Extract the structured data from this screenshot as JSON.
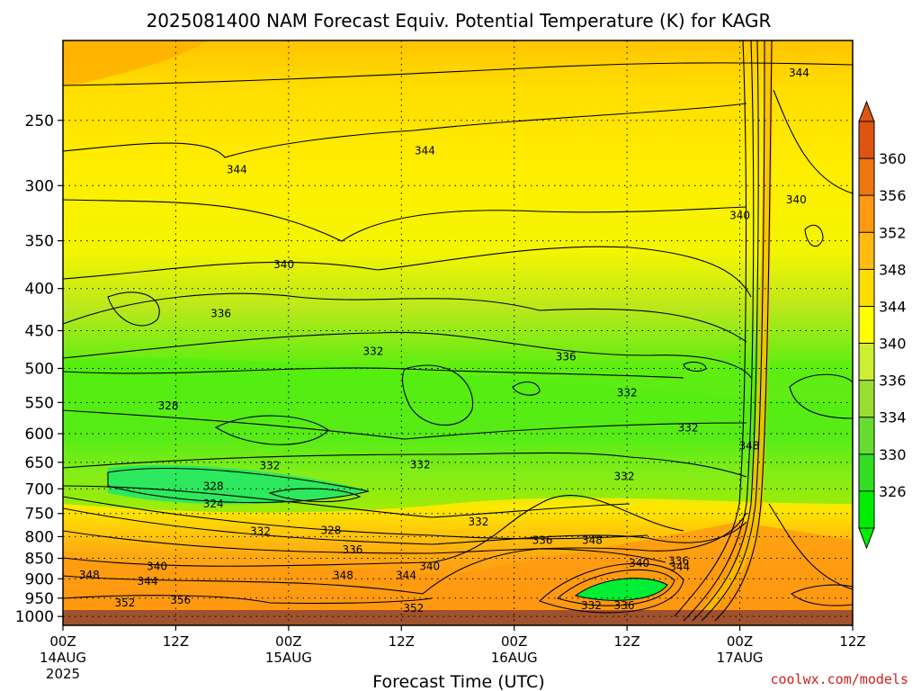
{
  "chart_data": {
    "type": "heatmap",
    "title": "2025081400 NAM Forecast Equiv. Potential Temperature (K) for KAGR",
    "xlabel": "Forecast Time (UTC)",
    "ylabel": "",
    "x_ticks": [
      {
        "label": "00Z",
        "sub": "14AUG",
        "sub2": "2025",
        "hour": 0
      },
      {
        "label": "12Z",
        "sub": "",
        "sub2": "",
        "hour": 12
      },
      {
        "label": "00Z",
        "sub": "15AUG",
        "sub2": "",
        "hour": 24
      },
      {
        "label": "12Z",
        "sub": "",
        "sub2": "",
        "hour": 36
      },
      {
        "label": "00Z",
        "sub": "16AUG",
        "sub2": "",
        "hour": 48
      },
      {
        "label": "12Z",
        "sub": "",
        "sub2": "",
        "hour": 60
      },
      {
        "label": "00Z",
        "sub": "17AUG",
        "sub2": "",
        "hour": 72
      },
      {
        "label": "12Z",
        "sub": "",
        "sub2": "",
        "hour": 84
      }
    ],
    "y_ticks": [
      "250",
      "300",
      "350",
      "400",
      "450",
      "500",
      "550",
      "600",
      "650",
      "700",
      "750",
      "800",
      "850",
      "900",
      "950",
      "1000"
    ],
    "y_scale": "log",
    "xlim": [
      0,
      84
    ],
    "ylim": [
      1025,
      200
    ],
    "grid": true,
    "colorbar": {
      "levels": [
        "326",
        "330",
        "334",
        "336",
        "340",
        "344",
        "348",
        "352",
        "356",
        "360"
      ],
      "colors": [
        "#00ee00",
        "#33dd22",
        "#66dd33",
        "#99dd33",
        "#ccee33",
        "#ffff00",
        "#ffdd00",
        "#ffbb11",
        "#ff9911",
        "#ee7711",
        "#dd5511"
      ]
    },
    "contour_labels": [
      {
        "text": "344",
        "hour": 78.3,
        "p": 219
      },
      {
        "text": "344",
        "hour": 38.5,
        "p": 272
      },
      {
        "text": "344",
        "hour": 18.5,
        "p": 287
      },
      {
        "text": "340",
        "hour": 78.0,
        "p": 312
      },
      {
        "text": "340",
        "hour": 72.0,
        "p": 326
      },
      {
        "text": "340",
        "hour": 23.5,
        "p": 374
      },
      {
        "text": "336",
        "hour": 16.8,
        "p": 429
      },
      {
        "text": "336",
        "hour": 53.5,
        "p": 484
      },
      {
        "text": "332",
        "hour": 33.0,
        "p": 477
      },
      {
        "text": "332",
        "hour": 60.0,
        "p": 535
      },
      {
        "text": "332",
        "hour": 66.5,
        "p": 590
      },
      {
        "text": "332",
        "hour": 38.0,
        "p": 654
      },
      {
        "text": "332",
        "hour": 22.0,
        "p": 656
      },
      {
        "text": "332",
        "hour": 59.7,
        "p": 676
      },
      {
        "text": "332",
        "hour": 44.2,
        "p": 768
      },
      {
        "text": "332",
        "hour": 21.0,
        "p": 788
      },
      {
        "text": "348",
        "hour": 73.0,
        "p": 621
      },
      {
        "text": "328",
        "hour": 11.2,
        "p": 555
      },
      {
        "text": "328",
        "hour": 16.0,
        "p": 695
      },
      {
        "text": "328",
        "hour": 28.5,
        "p": 786
      },
      {
        "text": "324",
        "hour": 16.0,
        "p": 730
      },
      {
        "text": "336",
        "hour": 30.8,
        "p": 830
      },
      {
        "text": "336",
        "hour": 51.0,
        "p": 808
      },
      {
        "text": "336",
        "hour": 65.5,
        "p": 856
      },
      {
        "text": "348",
        "hour": 56.3,
        "p": 808
      },
      {
        "text": "340",
        "hour": 10.0,
        "p": 869
      },
      {
        "text": "340",
        "hour": 39.0,
        "p": 869
      },
      {
        "text": "340",
        "hour": 61.3,
        "p": 862
      },
      {
        "text": "344",
        "hour": 65.6,
        "p": 871
      },
      {
        "text": "344",
        "hour": 9.0,
        "p": 906
      },
      {
        "text": "344",
        "hour": 36.5,
        "p": 892
      },
      {
        "text": "348",
        "hour": 2.8,
        "p": 890
      },
      {
        "text": "348",
        "hour": 29.8,
        "p": 892
      },
      {
        "text": "352",
        "hour": 6.6,
        "p": 963
      },
      {
        "text": "356",
        "hour": 12.5,
        "p": 955
      },
      {
        "text": "352",
        "hour": 37.3,
        "p": 977
      },
      {
        "text": "332",
        "hour": 56.2,
        "p": 970
      },
      {
        "text": "336",
        "hour": 59.7,
        "p": 970
      }
    ]
  },
  "credit": "coolwx.com/models"
}
